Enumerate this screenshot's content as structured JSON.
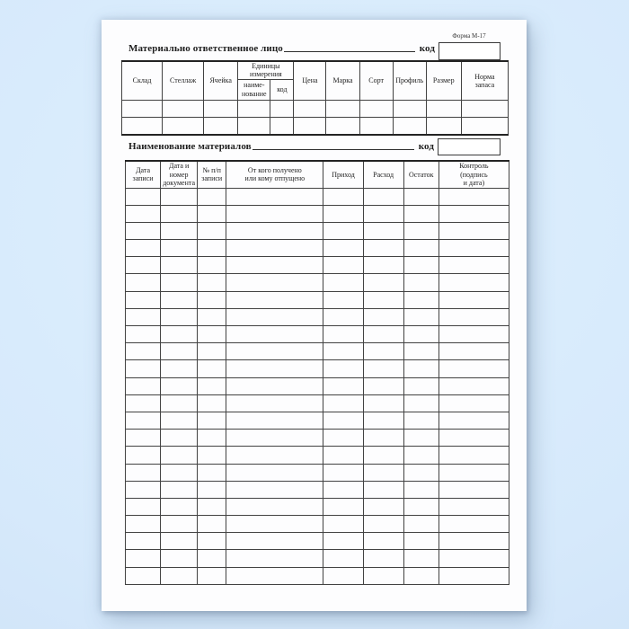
{
  "form": {
    "code_stamp": "Форма М-17",
    "responsible_line": {
      "label": "Материально ответственное лицо",
      "code_label": "код"
    },
    "materials_line": {
      "label": "Наименование материалов",
      "code_label": "код"
    }
  },
  "storage_table": {
    "headers": {
      "warehouse": "Склад",
      "rack": "Стеллаж",
      "cell": "Ячейка",
      "units_group": "Единицы\nизмерения",
      "units_name": "наиме-\nнование",
      "units_code": "код",
      "price": "Цена",
      "brand": "Марка",
      "grade": "Сорт",
      "profile": "Профиль",
      "size": "Размер",
      "stock_norm": "Норма\nзапаса"
    },
    "empty_row_count": 2,
    "column_count": 11
  },
  "records_table": {
    "headers": {
      "record_date": "Дата\nзаписи",
      "doc_date_number": "Дата и\nномер\nдокумента",
      "entry_number": "№ п/п\nзаписи",
      "counterparty": "От кого получено\nили кому отпущено",
      "income": "Приход",
      "expense": "Расход",
      "balance": "Остаток",
      "control": "Контроль\n(подпись\nи дата)"
    },
    "empty_row_count": 23,
    "column_count": 8
  },
  "colors": {
    "background": "#d6e9fb",
    "paper": "#fdfdfe",
    "grid_line": "#424242",
    "text": "#222222"
  }
}
